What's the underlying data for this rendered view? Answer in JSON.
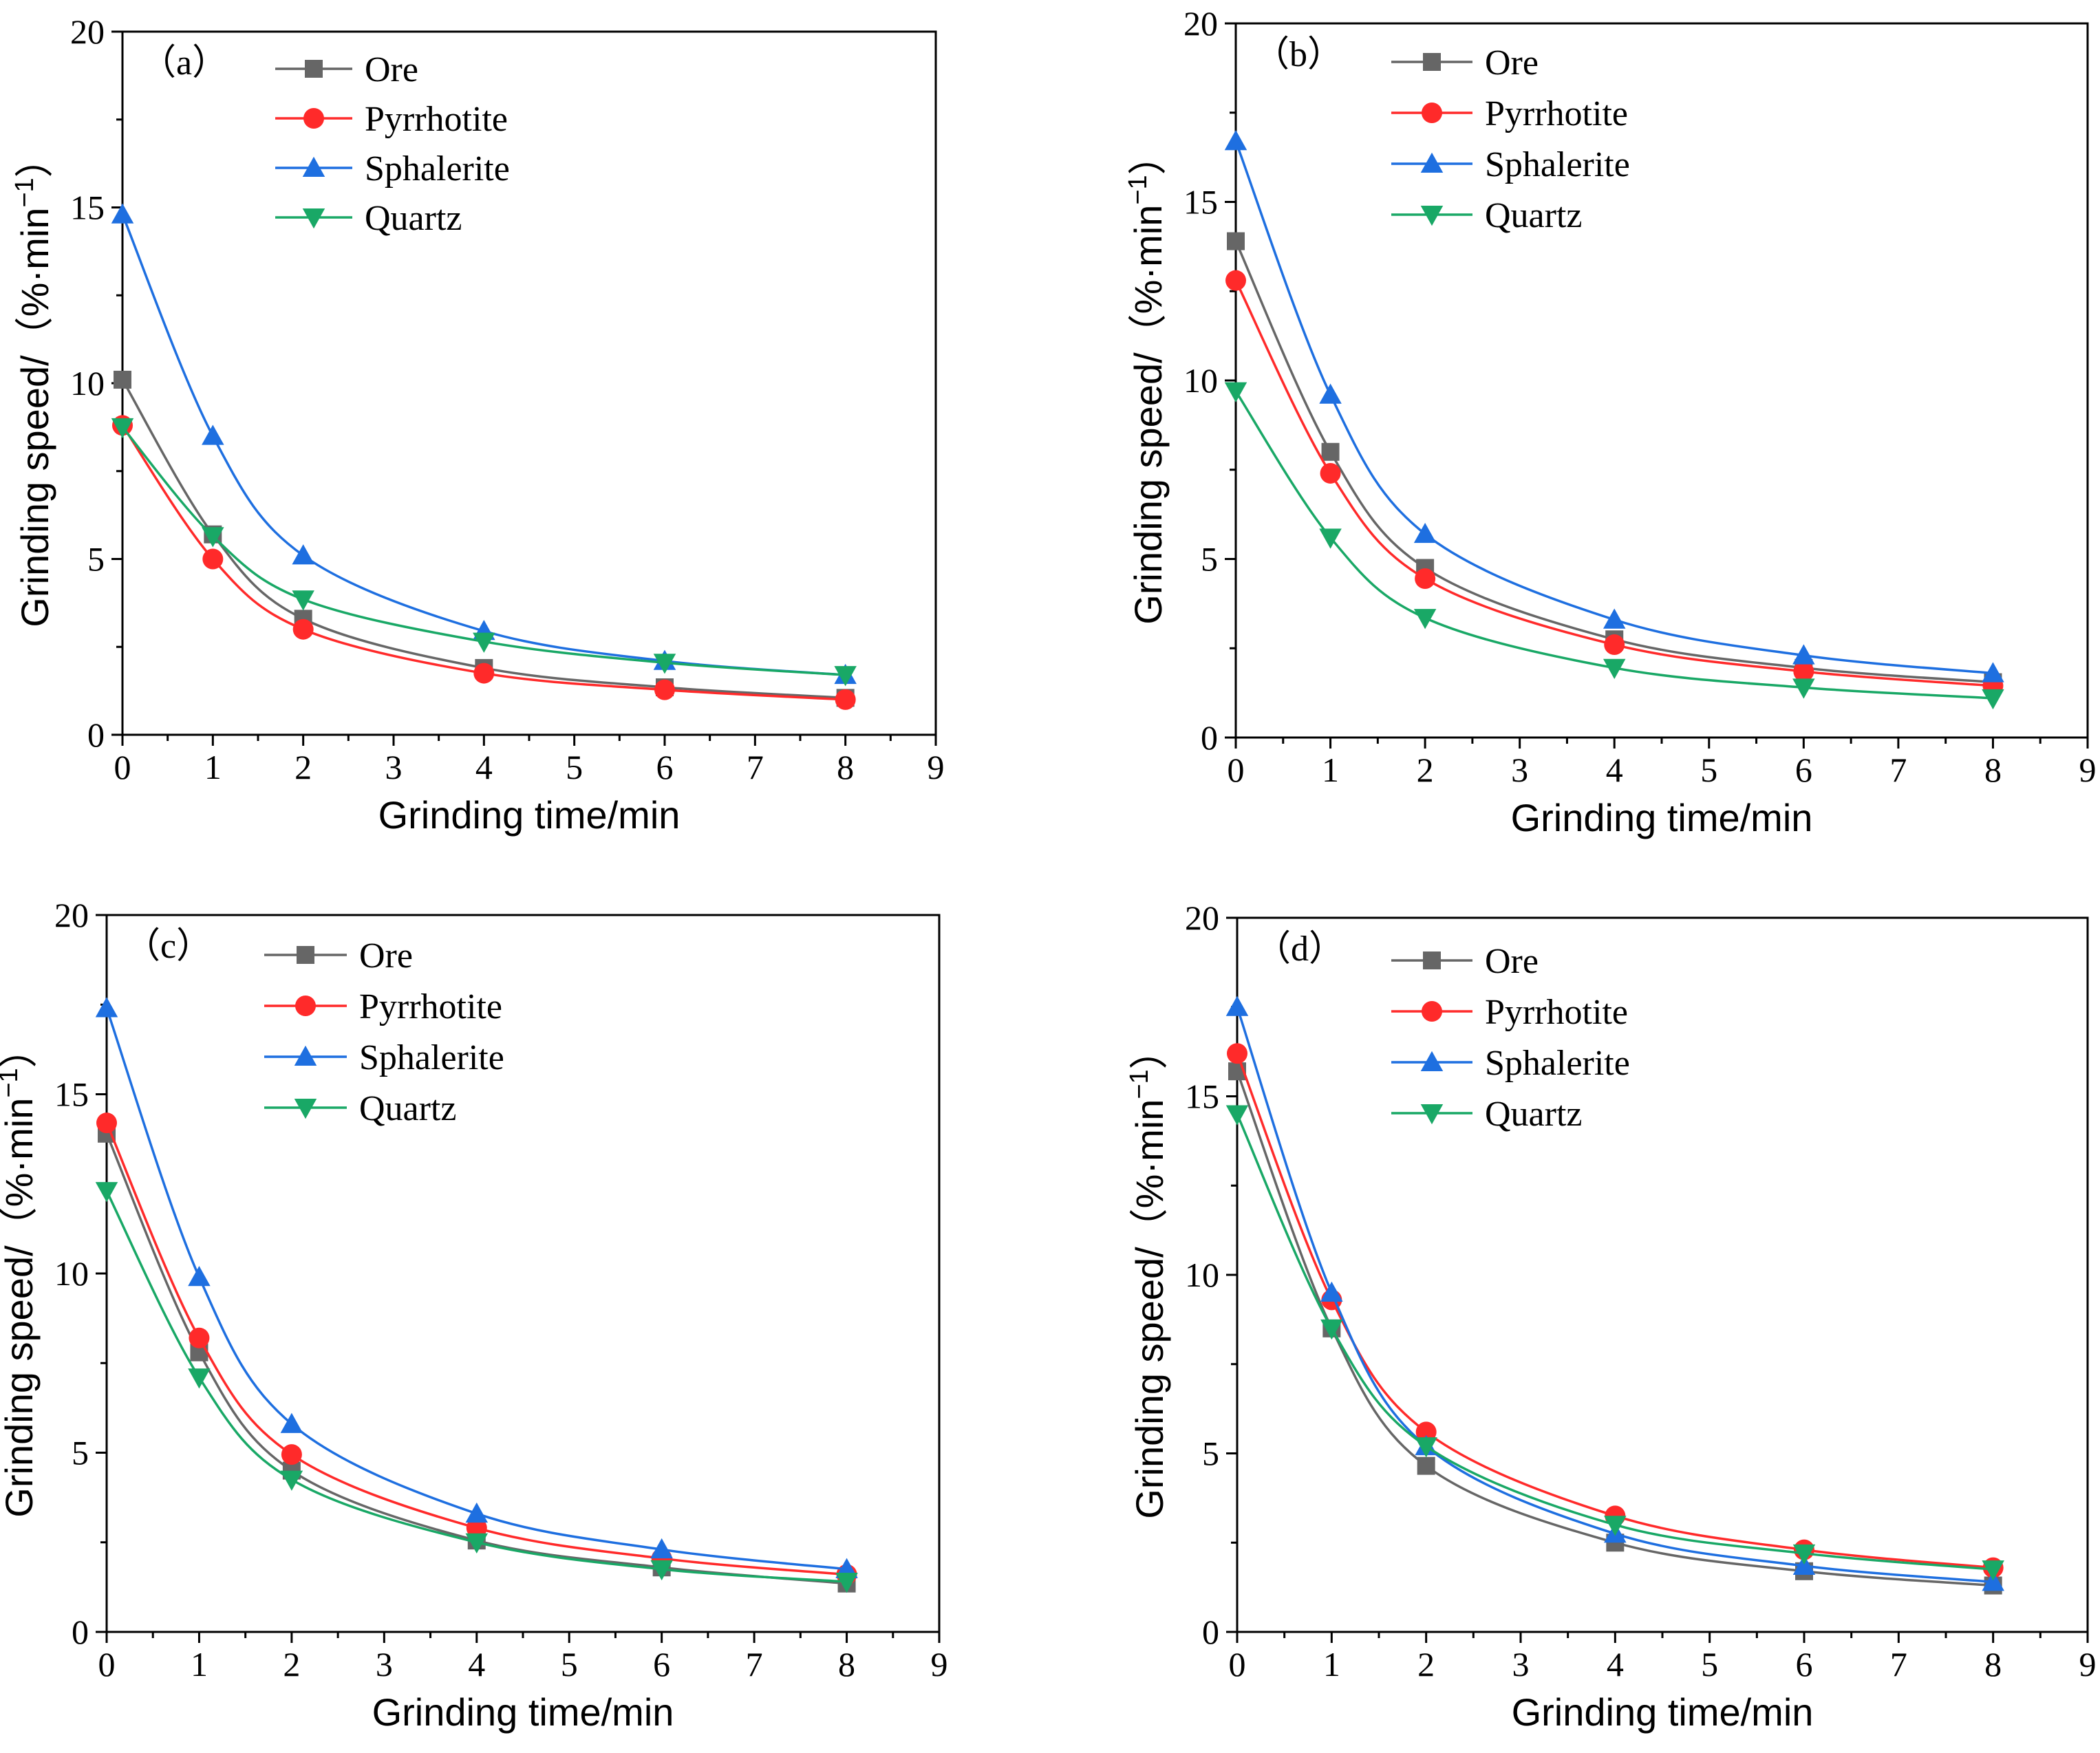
{
  "colors": {
    "Ore": "#666666",
    "Pyrrhotite": "#ff2a2a",
    "Sphalerite": "#1e6fe0",
    "Quartz": "#19a866"
  },
  "chart_data": [
    {
      "type": "line",
      "panel_label": "（a）",
      "xlabel": "Grinding time/min",
      "ylabel_main": "Grinding speed/（%·min",
      "ylabel_sup": "−1",
      "ylabel_end": "）",
      "xlim": [
        0,
        9
      ],
      "ylim": [
        0,
        20
      ],
      "xticks": [
        0,
        1,
        2,
        3,
        4,
        5,
        6,
        7,
        8,
        9
      ],
      "yticks": [
        0,
        5,
        10,
        15,
        20
      ],
      "x": [
        0,
        1,
        2,
        4,
        6,
        8
      ],
      "series": [
        {
          "name": "Ore",
          "marker": "square",
          "values": [
            10.1,
            5.7,
            3.3,
            1.9,
            1.35,
            1.05
          ]
        },
        {
          "name": "Pyrrhotite",
          "marker": "circle",
          "values": [
            8.8,
            5.0,
            3.0,
            1.75,
            1.28,
            1.0
          ]
        },
        {
          "name": "Sphalerite",
          "marker": "triangle-up",
          "values": [
            14.8,
            8.5,
            5.1,
            2.95,
            2.1,
            1.7
          ]
        },
        {
          "name": "Quartz",
          "marker": "triangle-down",
          "values": [
            8.75,
            5.65,
            3.85,
            2.65,
            2.05,
            1.7
          ]
        }
      ]
    },
    {
      "type": "line",
      "panel_label": "（b）",
      "xlabel": "Grinding time/min",
      "ylabel_main": "Grinding speed/（%·min",
      "ylabel_sup": "−1",
      "ylabel_end": "）",
      "xlim": [
        0,
        9
      ],
      "ylim": [
        0,
        20
      ],
      "xticks": [
        0,
        1,
        2,
        3,
        4,
        5,
        6,
        7,
        8,
        9
      ],
      "yticks": [
        0,
        5,
        10,
        15,
        20
      ],
      "x": [
        0,
        1,
        2,
        4,
        6,
        8
      ],
      "series": [
        {
          "name": "Ore",
          "marker": "square",
          "values": [
            13.9,
            8.0,
            4.75,
            2.75,
            1.95,
            1.55
          ]
        },
        {
          "name": "Pyrrhotite",
          "marker": "circle",
          "values": [
            12.8,
            7.4,
            4.45,
            2.6,
            1.85,
            1.45
          ]
        },
        {
          "name": "Sphalerite",
          "marker": "triangle-up",
          "values": [
            16.7,
            9.6,
            5.7,
            3.3,
            2.3,
            1.8
          ]
        },
        {
          "name": "Quartz",
          "marker": "triangle-down",
          "values": [
            9.7,
            5.6,
            3.35,
            1.95,
            1.4,
            1.1
          ]
        }
      ]
    },
    {
      "type": "line",
      "panel_label": "（c）",
      "xlabel": "Grinding time/min",
      "ylabel_main": "Grinding speed/（%·min",
      "ylabel_sup": "−1",
      "ylabel_end": "）",
      "xlim": [
        0,
        9
      ],
      "ylim": [
        0,
        20
      ],
      "xticks": [
        0,
        1,
        2,
        3,
        4,
        5,
        6,
        7,
        8,
        9
      ],
      "yticks": [
        0,
        5,
        10,
        15,
        20
      ],
      "x": [
        0,
        1,
        2,
        4,
        6,
        8
      ],
      "series": [
        {
          "name": "Ore",
          "marker": "square",
          "values": [
            13.9,
            7.8,
            4.5,
            2.55,
            1.8,
            1.35
          ]
        },
        {
          "name": "Pyrrhotite",
          "marker": "circle",
          "values": [
            14.2,
            8.2,
            4.95,
            2.9,
            2.05,
            1.6
          ]
        },
        {
          "name": "Sphalerite",
          "marker": "triangle-up",
          "values": [
            17.4,
            9.9,
            5.8,
            3.3,
            2.3,
            1.75
          ]
        },
        {
          "name": "Quartz",
          "marker": "triangle-down",
          "values": [
            12.3,
            7.1,
            4.25,
            2.5,
            1.75,
            1.4
          ]
        }
      ]
    },
    {
      "type": "line",
      "panel_label": "（d）",
      "xlabel": "Grinding time/min",
      "ylabel_main": "Grinding speed/（%·min",
      "ylabel_sup": "−1",
      "ylabel_end": "）",
      "xlim": [
        0,
        9
      ],
      "ylim": [
        0,
        20
      ],
      "xticks": [
        0,
        1,
        2,
        3,
        4,
        5,
        6,
        7,
        8,
        9
      ],
      "yticks": [
        0,
        5,
        10,
        15,
        20
      ],
      "x": [
        0,
        1,
        2,
        4,
        6,
        8
      ],
      "series": [
        {
          "name": "Ore",
          "marker": "square",
          "values": [
            15.7,
            8.5,
            4.65,
            2.5,
            1.7,
            1.3
          ]
        },
        {
          "name": "Pyrrhotite",
          "marker": "circle",
          "values": [
            16.2,
            9.3,
            5.6,
            3.25,
            2.3,
            1.8
          ]
        },
        {
          "name": "Sphalerite",
          "marker": "triangle-up",
          "values": [
            17.5,
            9.5,
            5.2,
            2.75,
            1.85,
            1.4
          ]
        },
        {
          "name": "Quartz",
          "marker": "triangle-down",
          "values": [
            14.5,
            8.5,
            5.2,
            3.0,
            2.2,
            1.75
          ]
        }
      ]
    }
  ]
}
